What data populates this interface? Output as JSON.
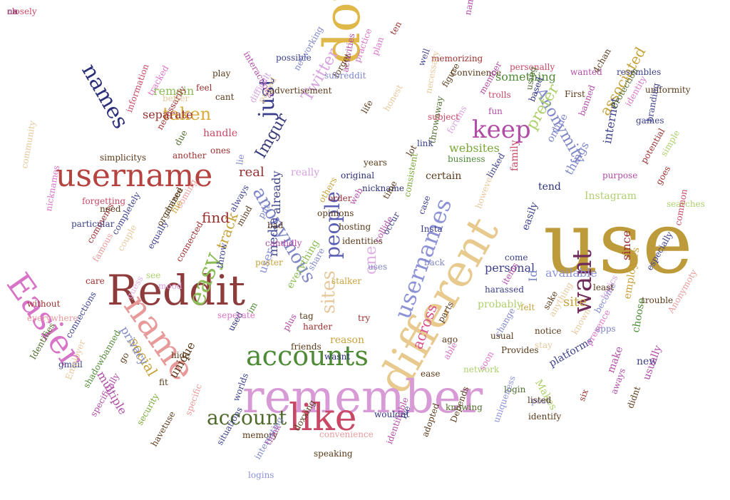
{
  "words": [
    {
      "text": "use",
      "color": "#bd9a3a"
    },
    {
      "text": "different",
      "color": "#e8c98e"
    },
    {
      "text": "remember",
      "color": "#d89ad6"
    },
    {
      "text": "dont",
      "color": "#e0b84a"
    },
    {
      "text": "username",
      "color": "#b5433f"
    },
    {
      "text": "Reddit",
      "color": "#8e3b3b"
    },
    {
      "text": "name",
      "color": "#e89a9a"
    },
    {
      "text": "Easier",
      "color": "#d874c8"
    },
    {
      "text": "like",
      "color": "#c84866"
    },
    {
      "text": "accounts",
      "color": "#4f8a37"
    },
    {
      "text": "want",
      "color": "#6e2a5a"
    },
    {
      "text": "usernames",
      "color": "#8d92d6"
    },
    {
      "text": "keep",
      "color": "#b04ca6"
    },
    {
      "text": "account",
      "color": "#4f6b2c"
    },
    {
      "text": "names",
      "color": "#2c2f7a"
    },
    {
      "text": "just",
      "color": "#3a3d8c"
    },
    {
      "text": "anonymous",
      "color": "#7f86c8"
    },
    {
      "text": "people",
      "color": "#5a5fb4"
    },
    {
      "text": "easy",
      "color": "#8cbc55"
    },
    {
      "text": "sites",
      "color": "#e6c89c"
    },
    {
      "text": "taken",
      "color": "#d9aa3a"
    },
    {
      "text": "Anonymity",
      "color": "#7f86c8"
    },
    {
      "text": "prefer",
      "color": "#aed06d"
    },
    {
      "text": "Twitter",
      "color": "#d7a3e0"
    },
    {
      "text": "one",
      "color": "#e0b0e6"
    },
    {
      "text": "social",
      "color": "#c7a23b"
    },
    {
      "text": "across",
      "color": "#d9508c"
    },
    {
      "text": "Imgur",
      "color": "#3b3d7a"
    },
    {
      "text": "track",
      "color": "#c7a23b"
    },
    {
      "text": "media",
      "color": "#454a95"
    },
    {
      "text": "associated",
      "color": "#c7a23b"
    },
    {
      "text": "internet",
      "color": "#3d408a"
    },
    {
      "text": "find",
      "color": "#9a2f2f"
    },
    {
      "text": "real",
      "color": "#9a2f2f"
    },
    {
      "text": "websites",
      "color": "#7ba83a"
    },
    {
      "text": "already",
      "color": "#3d408a"
    },
    {
      "text": "user",
      "color": "#8d92d6"
    },
    {
      "text": "site",
      "color": "#c7a23b"
    },
    {
      "text": "personal",
      "color": "#3d408a"
    },
    {
      "text": "something",
      "color": "#4f8a37"
    },
    {
      "text": "things",
      "color": "#7f86c8"
    },
    {
      "text": "available",
      "color": "#8d92d6"
    },
    {
      "text": "privacy",
      "color": "#7f86c8"
    },
    {
      "text": "multiple",
      "color": "#b04ca6"
    },
    {
      "text": "unique",
      "color": "#5a3a1a"
    },
    {
      "text": "Id",
      "color": "#7f86c8"
    },
    {
      "text": "Makes",
      "color": "#aed06d"
    },
    {
      "text": "make",
      "color": "#b04ca6"
    },
    {
      "text": "remain",
      "color": "#8cbc55"
    },
    {
      "text": "separate",
      "color": "#9a2f2f"
    },
    {
      "text": "handle",
      "color": "#c84866"
    },
    {
      "text": "really",
      "color": "#d7a3e0"
    },
    {
      "text": "everything",
      "color": "#8cbc55"
    },
    {
      "text": "reason",
      "color": "#c7a23b"
    },
    {
      "text": "online",
      "color": "#7f86c8"
    },
    {
      "text": "family",
      "color": "#c84866"
    },
    {
      "text": "probably",
      "color": "#aed06d"
    },
    {
      "text": "easily",
      "color": "#3d408a"
    },
    {
      "text": "Instagram",
      "color": "#aed06d"
    },
    {
      "text": "since",
      "color": "#9a2f2f"
    },
    {
      "text": "platforms",
      "color": "#3d408a"
    },
    {
      "text": "new",
      "color": "#3d408a"
    },
    {
      "text": "usually",
      "color": "#b04ca6"
    },
    {
      "text": "choose",
      "color": "#4f8a37"
    },
    {
      "text": "employers",
      "color": "#c7a23b"
    },
    {
      "text": "trouble",
      "color": "#5a3a1a"
    },
    {
      "text": "become",
      "color": "#7f86c8"
    },
    {
      "text": "anything",
      "color": "#e6c89c"
    },
    {
      "text": "felt",
      "color": "#c7a23b"
    },
    {
      "text": "tend",
      "color": "#2c2f7a"
    },
    {
      "text": "certain",
      "color": "#5a3a1a"
    },
    {
      "text": "throwaway",
      "color": "#4f6b2c"
    },
    {
      "text": "business",
      "color": "#4f8a37"
    },
    {
      "text": "original",
      "color": "#2c2f7a"
    },
    {
      "text": "nickname",
      "color": "#2c2f7a"
    },
    {
      "text": "opinions",
      "color": "#5a3a1a"
    },
    {
      "text": "hosting",
      "color": "#5a3a1a"
    },
    {
      "text": "identities",
      "color": "#5a3a1a"
    },
    {
      "text": "consistent",
      "color": "#7ba83a"
    },
    {
      "text": "wasnt",
      "color": "#2c2f7a"
    },
    {
      "text": "used",
      "color": "#2c2f7a"
    },
    {
      "text": "hide",
      "color": "#5a3a1a"
    },
    {
      "text": "security",
      "color": "#7ba83a"
    },
    {
      "text": "specific",
      "color": "#e89a9a"
    },
    {
      "text": "havetuse",
      "color": "#5a3a1a"
    },
    {
      "text": "memory",
      "color": "#5a3a1a"
    },
    {
      "text": "wouldnt",
      "color": "#2c2f7a"
    },
    {
      "text": "login",
      "color": "#4f6b2c"
    },
    {
      "text": "post",
      "color": "#8d92d6"
    },
    {
      "text": "listed",
      "color": "#5a3a1a"
    },
    {
      "text": "identify",
      "color": "#5a3a1a"
    },
    {
      "text": "Provides",
      "color": "#5a3a1a"
    },
    {
      "text": "ease",
      "color": "#5a3a1a"
    },
    {
      "text": "network",
      "color": "#aed06d"
    },
    {
      "text": "guess",
      "color": "#e0b0e6"
    },
    {
      "text": "connections",
      "color": "#3d408a"
    },
    {
      "text": "Identifies",
      "color": "#4f6b2c"
    },
    {
      "text": "gmail",
      "color": "#3d408a"
    },
    {
      "text": "Employer",
      "color": "#e6c89c"
    },
    {
      "text": "shadowbanned",
      "color": "#4f8a37"
    },
    {
      "text": "specifically",
      "color": "#b04ca6"
    },
    {
      "text": "everywhere",
      "color": "#e89a9a"
    },
    {
      "text": "without",
      "color": "#9a2f2f"
    },
    {
      "text": "care",
      "color": "#9a2f2f"
    },
    {
      "text": "famous",
      "color": "#e89a9a"
    },
    {
      "text": "comments",
      "color": "#9a2f2f"
    },
    {
      "text": "nicknames",
      "color": "#d874c8"
    },
    {
      "text": "community",
      "color": "#e6c89c"
    },
    {
      "text": "simplicitys",
      "color": "#5a3a1a"
    },
    {
      "text": "information",
      "color": "#c84866"
    },
    {
      "text": "necessarily",
      "color": "#9a2f2f"
    },
    {
      "text": "another",
      "color": "#9a2f2f"
    },
    {
      "text": "ones",
      "color": "#9a2f2f"
    },
    {
      "text": "forgetting",
      "color": "#c84866"
    },
    {
      "text": "particular",
      "color": "#3d408a"
    },
    {
      "text": "need",
      "color": "#5a3a1a"
    },
    {
      "text": "completely",
      "color": "#3d408a"
    },
    {
      "text": "equally",
      "color": "#3d408a"
    },
    {
      "text": "organized",
      "color": "#5a3a1a"
    },
    {
      "text": "connected",
      "color": "#9a2f2f"
    },
    {
      "text": "mood",
      "color": "#d7a3e0"
    },
    {
      "text": "see",
      "color": "#aed06d"
    },
    {
      "text": "couple",
      "color": "#e6c89c"
    },
    {
      "text": "coming",
      "color": "#e89a9a"
    },
    {
      "text": "chance",
      "color": "#5a3a1a"
    },
    {
      "text": "tracked",
      "color": "#d874c8"
    },
    {
      "text": "better",
      "color": "#e6c89c"
    },
    {
      "text": "feel",
      "color": "#9a2f2f"
    },
    {
      "text": "cant",
      "color": "#5a3a1a"
    },
    {
      "text": "play",
      "color": "#5a3a1a"
    },
    {
      "text": "interactions",
      "color": "#b04ca6"
    },
    {
      "text": "possible",
      "color": "#3d408a"
    },
    {
      "text": "networking",
      "color": "#7f86c8"
    },
    {
      "text": "advertisement",
      "color": "#5a3a1a"
    },
    {
      "text": "memorizing",
      "color": "#9a2f2f"
    },
    {
      "text": "Convinence",
      "color": "#5a3a1a"
    },
    {
      "text": "namenickname",
      "color": "#b04ca6"
    },
    {
      "text": "personally",
      "color": "#c84866"
    },
    {
      "text": "resembles",
      "color": "#3d408a"
    },
    {
      "text": "uniformity",
      "color": "#5a3a1a"
    },
    {
      "text": "First",
      "color": "#5a3a1a"
    },
    {
      "text": "banned",
      "color": "#b04ca6"
    },
    {
      "text": "Protection",
      "color": "#4f6b2c"
    },
    {
      "text": "games",
      "color": "#3d408a"
    },
    {
      "text": "branding",
      "color": "#3d408a"
    },
    {
      "text": "potential",
      "color": "#9a2f2f"
    },
    {
      "text": "simple",
      "color": "#aed06d"
    },
    {
      "text": "searches",
      "color": "#aed06d"
    },
    {
      "text": "goes",
      "color": "#9a2f2f"
    },
    {
      "text": "purpose",
      "color": "#b04ca6"
    },
    {
      "text": "common",
      "color": "#c84866"
    },
    {
      "text": "especially",
      "color": "#3d408a"
    },
    {
      "text": "Anonymoty",
      "color": "#e89a9a"
    },
    {
      "text": "topics",
      "color": "#d7a3e0"
    },
    {
      "text": "least",
      "color": "#5a3a1a"
    },
    {
      "text": "sake",
      "color": "#5a3a1a"
    },
    {
      "text": "known",
      "color": "#e6c89c"
    },
    {
      "text": "notice",
      "color": "#5a3a1a"
    },
    {
      "text": "apps",
      "color": "#7f86c8"
    },
    {
      "text": "presence",
      "color": "#d874c8"
    },
    {
      "text": "didnt",
      "color": "#5a3a1a"
    },
    {
      "text": "aways",
      "color": "#b04ca6"
    },
    {
      "text": "six",
      "color": "#9a2f2f"
    },
    {
      "text": "uniqueness",
      "color": "#8d92d6"
    },
    {
      "text": "Depends",
      "color": "#5a3a1a"
    },
    {
      "text": "knowing",
      "color": "#4f6b2c"
    },
    {
      "text": "Ive",
      "color": "#3d408a"
    },
    {
      "text": "adopted",
      "color": "#5a3a1a"
    },
    {
      "text": "identifiable",
      "color": "#b04ca6"
    },
    {
      "text": "convenience",
      "color": "#e89a9a"
    },
    {
      "text": "speaking",
      "color": "#5a3a1a"
    },
    {
      "text": "doxxing",
      "color": "#5a3a1a"
    },
    {
      "text": "think",
      "color": "#b04ca6"
    },
    {
      "text": "interesting",
      "color": "#7f86c8"
    },
    {
      "text": "logins",
      "color": "#8d92d6"
    },
    {
      "text": "situations",
      "color": "#3d408a"
    },
    {
      "text": "worlds",
      "color": "#3d408a"
    },
    {
      "text": "fit",
      "color": "#5a3a1a"
    },
    {
      "text": "go",
      "color": "#5a3a1a"
    },
    {
      "text": "seperate",
      "color": "#d874c8"
    },
    {
      "text": "im",
      "color": "#4f8a37"
    },
    {
      "text": "plus",
      "color": "#b04ca6"
    },
    {
      "text": "friends",
      "color": "#5a3a1a"
    },
    {
      "text": "harder",
      "color": "#9a2f2f"
    },
    {
      "text": "try",
      "color": "#9a2f2f"
    },
    {
      "text": "tag",
      "color": "#5a3a1a"
    },
    {
      "text": "uses",
      "color": "#7f86c8"
    },
    {
      "text": "share",
      "color": "#7f86c8"
    },
    {
      "text": "stalker",
      "color": "#c7a23b"
    },
    {
      "text": "collide",
      "color": "#b04ca6"
    },
    {
      "text": "occur",
      "color": "#3d408a"
    },
    {
      "text": "candidly",
      "color": "#b04ca6"
    },
    {
      "text": "poster",
      "color": "#c7a23b"
    },
    {
      "text": "bad",
      "color": "#5a3a1a"
    },
    {
      "text": "throw",
      "color": "#3d408a"
    },
    {
      "text": "mind",
      "color": "#5a3a1a"
    },
    {
      "text": "always",
      "color": "#3d408a"
    },
    {
      "text": "put",
      "color": "#7f86c8"
    },
    {
      "text": "others",
      "color": "#c7a23b"
    },
    {
      "text": "order",
      "color": "#9a2f2f"
    },
    {
      "text": "web",
      "color": "#b04ca6"
    },
    {
      "text": "case",
      "color": "#3d408a"
    },
    {
      "text": "Insta",
      "color": "#3d408a"
    },
    {
      "text": "back",
      "color": "#7f86c8"
    },
    {
      "text": "come",
      "color": "#3d408a"
    },
    {
      "text": "harassed",
      "color": "#3d408a"
    },
    {
      "text": "items",
      "color": "#b04ca6"
    },
    {
      "text": "parts",
      "color": "#5a3a1a"
    },
    {
      "text": "ago",
      "color": "#5a3a1a"
    },
    {
      "text": "able",
      "color": "#d874c8"
    },
    {
      "text": "usual",
      "color": "#5a3a1a"
    },
    {
      "text": "soon",
      "color": "#d874c8"
    },
    {
      "text": "change",
      "color": "#7f86c8"
    },
    {
      "text": "stay",
      "color": "#e6c89c"
    },
    {
      "text": "however",
      "color": "#e6c89c"
    },
    {
      "text": "linked",
      "color": "#3d408a"
    },
    {
      "text": "years",
      "color": "#5a3a1a"
    },
    {
      "text": "time",
      "color": "#5a3a1a"
    },
    {
      "text": "lot",
      "color": "#5a3a1a"
    },
    {
      "text": "link",
      "color": "#3d408a"
    },
    {
      "text": "forums",
      "color": "#d7a3e0"
    },
    {
      "text": "honest",
      "color": "#e6c89c"
    },
    {
      "text": "subject",
      "color": "#c84866"
    },
    {
      "text": "fun",
      "color": "#b04ca6"
    },
    {
      "text": "trolls",
      "color": "#c84866"
    },
    {
      "text": "member",
      "color": "#b04ca6"
    },
    {
      "text": "using",
      "color": "#4f6b2c"
    },
    {
      "text": "based",
      "color": "#2c2f7a"
    },
    {
      "text": "wanted",
      "color": "#b04ca6"
    },
    {
      "text": "4chan",
      "color": "#5a3a1a"
    },
    {
      "text": "identity",
      "color": "#d874c8"
    },
    {
      "text": "figure",
      "color": "#5a3a1a"
    },
    {
      "text": "necessary",
      "color": "#e6c89c"
    },
    {
      "text": "well",
      "color": "#3d408a"
    },
    {
      "text": "practice",
      "color": "#d874c8"
    },
    {
      "text": "life",
      "color": "#5a3a1a"
    },
    {
      "text": "activities",
      "color": "#b04ca6"
    },
    {
      "text": "forget",
      "color": "#5a3a1a"
    },
    {
      "text": "subreddit",
      "color": "#7f86c8"
    },
    {
      "text": "ten",
      "color": "#9a2f2f"
    },
    {
      "text": "plan",
      "color": "#d874c8"
    },
    {
      "text": "due",
      "color": "#4f6b2c"
    },
    {
      "text": "paired",
      "color": "#e6c89c"
    },
    {
      "text": "difficult",
      "color": "#d7a3e0"
    },
    {
      "text": "lie",
      "color": "#7f86c8"
    },
    {
      "text": "file",
      "color": "#c7a23b"
    },
    {
      "text": "closely",
      "color": "#c84866"
    },
    {
      "text": "na",
      "color": "#5a3a1a"
    },
    {
      "text": "un",
      "color": "#b04ca6"
    }
  ]
}
